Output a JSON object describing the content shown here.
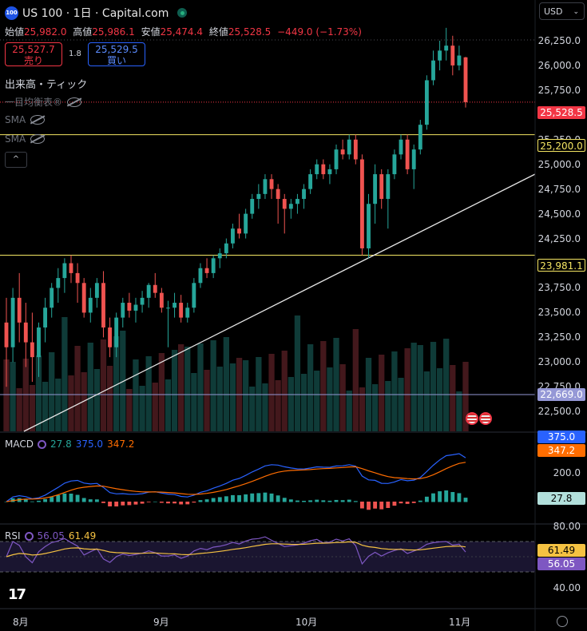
{
  "header": {
    "logo_text": "100",
    "title": "US 100 · 1日 · Capital.com",
    "open_label": "始値",
    "open": "25,982.0",
    "high_label": "高値",
    "high": "25,986.1",
    "low_label": "安値",
    "low": "25,474.4",
    "close_label": "終値",
    "close": "25,528.5",
    "change": "−449.0 (−1.73%)",
    "sell_price": "25,527.7",
    "sell_label": "売り",
    "spread": "1.8",
    "buy_price": "25,529.5",
    "buy_label": "買い",
    "currency": "USD"
  },
  "indicators": {
    "volume": "出来高・ティック",
    "ichimoku": "一目均衡表®",
    "sma1": "SMA",
    "sma2": "SMA",
    "collapse_icon": "^"
  },
  "price_axis": [
    "26,250.0",
    "26,000.0",
    "25,750.0",
    "25,250.0",
    "25,000.0",
    "24,750.0",
    "24,500.0",
    "24,250.0",
    "23,750.0",
    "23,500.0",
    "23,250.0",
    "23,000.0",
    "22,750.0",
    "22,500.0"
  ],
  "price_tags": {
    "last": "25,528.5",
    "line_upper": "25,200.0",
    "line_lower": "23,981.1",
    "volume_line": "22,669.0"
  },
  "macd": {
    "label": "MACD",
    "hist": "27.8",
    "macd": "375.0",
    "signal": "347.2",
    "axis_200": "200.0",
    "tag_macd": "375.0",
    "tag_signal": "347.2",
    "tag_hist": "27.8"
  },
  "rsi": {
    "label": "RSI",
    "rsi": "56.05",
    "ma": "61.49",
    "axis_80": "80.00",
    "axis_40": "40.00",
    "tag_ma": "61.49",
    "tag_rsi": "56.05"
  },
  "time_axis": [
    "8月",
    "9月",
    "10月",
    "11月"
  ],
  "colors": {
    "up": "#26a69a",
    "down": "#ef5350",
    "accent": "#2962ff",
    "level": "#f5e663"
  },
  "chart_data": {
    "type": "candlestick",
    "ohlc": [
      [
        23300,
        23550,
        22650,
        23050
      ],
      [
        23050,
        23650,
        22900,
        23550
      ],
      [
        23550,
        23800,
        23100,
        23300
      ],
      [
        23300,
        23500,
        22850,
        23100
      ],
      [
        23100,
        23400,
        22700,
        22950
      ],
      [
        22950,
        23300,
        22750,
        23250
      ],
      [
        23250,
        23550,
        23100,
        23450
      ],
      [
        23450,
        23700,
        23350,
        23650
      ],
      [
        23650,
        23850,
        23500,
        23750
      ],
      [
        23750,
        23950,
        23600,
        23900
      ],
      [
        23900,
        23980,
        23700,
        23800
      ],
      [
        23800,
        23900,
        23500,
        23700
      ],
      [
        23700,
        23750,
        23350,
        23400
      ],
      [
        23400,
        23650,
        23300,
        23550
      ],
      [
        23550,
        23750,
        23450,
        23700
      ],
      [
        23700,
        23820,
        23150,
        23250
      ],
      [
        23250,
        23350,
        22950,
        23050
      ],
      [
        23050,
        23400,
        22950,
        23350
      ],
      [
        23350,
        23550,
        23250,
        23500
      ],
      [
        23500,
        23600,
        23350,
        23420
      ],
      [
        23420,
        23550,
        23300,
        23480
      ],
      [
        23480,
        23620,
        23400,
        23550
      ],
      [
        23550,
        23700,
        23450,
        23680
      ],
      [
        23680,
        23800,
        23550,
        23600
      ],
      [
        23600,
        23650,
        23400,
        23450
      ],
      [
        23450,
        23520,
        23050,
        23450
      ],
      [
        23450,
        23600,
        23350,
        23500
      ],
      [
        23500,
        23580,
        23300,
        23350
      ],
      [
        23350,
        23500,
        23300,
        23450
      ],
      [
        23450,
        23750,
        23400,
        23700
      ],
      [
        23700,
        23900,
        23650,
        23850
      ],
      [
        23850,
        23950,
        23750,
        23800
      ],
      [
        23800,
        23980,
        23750,
        23950
      ],
      [
        23950,
        24050,
        23850,
        24000
      ],
      [
        24000,
        24150,
        23950,
        24100
      ],
      [
        24100,
        24300,
        24050,
        24250
      ],
      [
        24250,
        24400,
        24150,
        24200
      ],
      [
        24200,
        24450,
        24150,
        24400
      ],
      [
        24400,
        24600,
        24350,
        24550
      ],
      [
        24550,
        24700,
        24450,
        24600
      ],
      [
        24600,
        24800,
        24550,
        24750
      ],
      [
        24750,
        24800,
        24550,
        24650
      ],
      [
        24650,
        24700,
        24300,
        24550
      ],
      [
        24550,
        24600,
        24200,
        24450
      ],
      [
        24450,
        24550,
        24350,
        24500
      ],
      [
        24500,
        24600,
        24400,
        24550
      ],
      [
        24550,
        24700,
        24450,
        24650
      ],
      [
        24650,
        24850,
        24600,
        24800
      ],
      [
        24800,
        24950,
        24750,
        24900
      ],
      [
        24900,
        24950,
        24750,
        24800
      ],
      [
        24800,
        24900,
        24700,
        24850
      ],
      [
        24850,
        25100,
        24800,
        25050
      ],
      [
        25050,
        25150,
        24950,
        25000
      ],
      [
        25000,
        25200,
        24950,
        25150
      ],
      [
        25150,
        25200,
        24900,
        24950
      ],
      [
        24950,
        25000,
        23981,
        24050
      ],
      [
        24050,
        24600,
        23950,
        24500
      ],
      [
        24500,
        24900,
        24300,
        24800
      ],
      [
        24800,
        24850,
        24450,
        24550
      ],
      [
        24550,
        24850,
        24250,
        24800
      ],
      [
        24800,
        25050,
        24750,
        25000
      ],
      [
        25000,
        25200,
        24950,
        25150
      ],
      [
        25150,
        25200,
        24800,
        24850
      ],
      [
        24850,
        25100,
        24650,
        25050
      ],
      [
        25050,
        25350,
        25000,
        25300
      ],
      [
        25300,
        25800,
        25250,
        25750
      ],
      [
        25750,
        26050,
        25700,
        25950
      ],
      [
        25950,
        26150,
        25850,
        26050
      ],
      [
        26050,
        26280,
        25950,
        26100
      ],
      [
        26100,
        26200,
        25800,
        25900
      ],
      [
        25900,
        26100,
        25850,
        26000
      ],
      [
        25982,
        25986.1,
        25474.4,
        25528.5
      ]
    ],
    "levels": [
      25200.0,
      23981.1
    ],
    "last_price": 25528.5,
    "ylim": [
      22200,
      26400
    ],
    "time_labels": [
      "8月",
      "9月",
      "10月",
      "11月"
    ]
  }
}
